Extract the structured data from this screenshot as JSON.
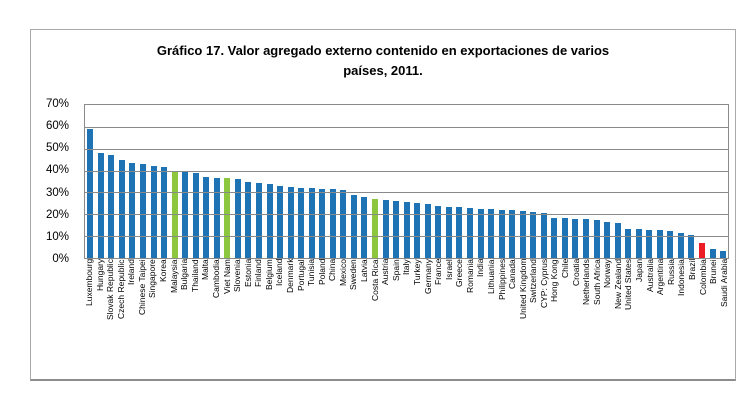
{
  "figure": {
    "title_line1": "Gráfico 17. Valor agregado externo contenido en exportaciones de varios",
    "title_line2": "países, 2011."
  },
  "chart_data": {
    "type": "bar",
    "title": "Gráfico 17. Valor agregado externo contenido en exportaciones de varios países, 2011.",
    "xlabel": "",
    "ylabel": "",
    "unit": "%",
    "ylim": [
      0,
      70
    ],
    "ytick_labels": [
      "70%",
      "60%",
      "50%",
      "40%",
      "30%",
      "20%",
      "10%",
      "0%"
    ],
    "grid": true,
    "legend_position": "none",
    "xlabel_rotation": 90,
    "colors": {
      "default_bar": "#1E73B5",
      "highlight_green": "#8DC63F",
      "highlight_red": "#EC1C24",
      "gridline": "#8a8a8a",
      "figure_border": "#a9a9a9"
    },
    "highlight_green_countries": [
      "Malaysia",
      "Viet Nam",
      "Costa Rica"
    ],
    "highlight_red_countries": [
      "Colombia"
    ],
    "categories": [
      "Luxembourg",
      "Hungary",
      "Slovak Republic",
      "Czech Republic",
      "Ireland",
      "Chinese Taipei",
      "Singapore",
      "Korea",
      "Malaysia",
      "Bulgaria",
      "Thailand",
      "Malta",
      "Cambodia",
      "Viet Nam",
      "Slovenia",
      "Estonia",
      "Finland",
      "Belgium",
      "Iceland",
      "Denmark",
      "Portugal",
      "Tunisia",
      "Poland",
      "China",
      "Mexico",
      "Sweden",
      "Latvia",
      "Costa Rica",
      "Austria",
      "Spain",
      "Italy",
      "Turkey",
      "Germany",
      "France",
      "Israel",
      "Greece",
      "Romania",
      "India",
      "Lithuania",
      "Philippines",
      "Canada",
      "United Kingdom",
      "Switzerland",
      "CYP: Cyprus",
      "Hong Kong",
      "Chile",
      "Croatia",
      "Netherlands",
      "South Africa",
      "Norway",
      "New Zealand",
      "United States",
      "Japan",
      "Australia",
      "Argentina",
      "Russia",
      "Indonesia",
      "Brazil",
      "Colombia",
      "Brunei",
      "Saudi Arabia"
    ],
    "values": [
      59,
      48,
      47,
      45,
      43.5,
      43,
      42,
      41.5,
      40,
      39.5,
      39,
      37,
      36.5,
      36.5,
      36,
      35,
      34.5,
      34,
      33,
      32.5,
      32,
      32,
      31.5,
      31.5,
      31,
      29,
      28,
      27,
      26.5,
      26,
      25.5,
      25,
      24.5,
      24,
      23.5,
      23.5,
      23,
      22.5,
      22.5,
      22,
      22,
      21.5,
      21,
      20.5,
      18.5,
      18.5,
      18,
      18,
      17.5,
      16.5,
      16,
      13.5,
      13.5,
      13,
      13,
      12.5,
      11.5,
      10.5,
      7,
      4,
      3
    ]
  }
}
